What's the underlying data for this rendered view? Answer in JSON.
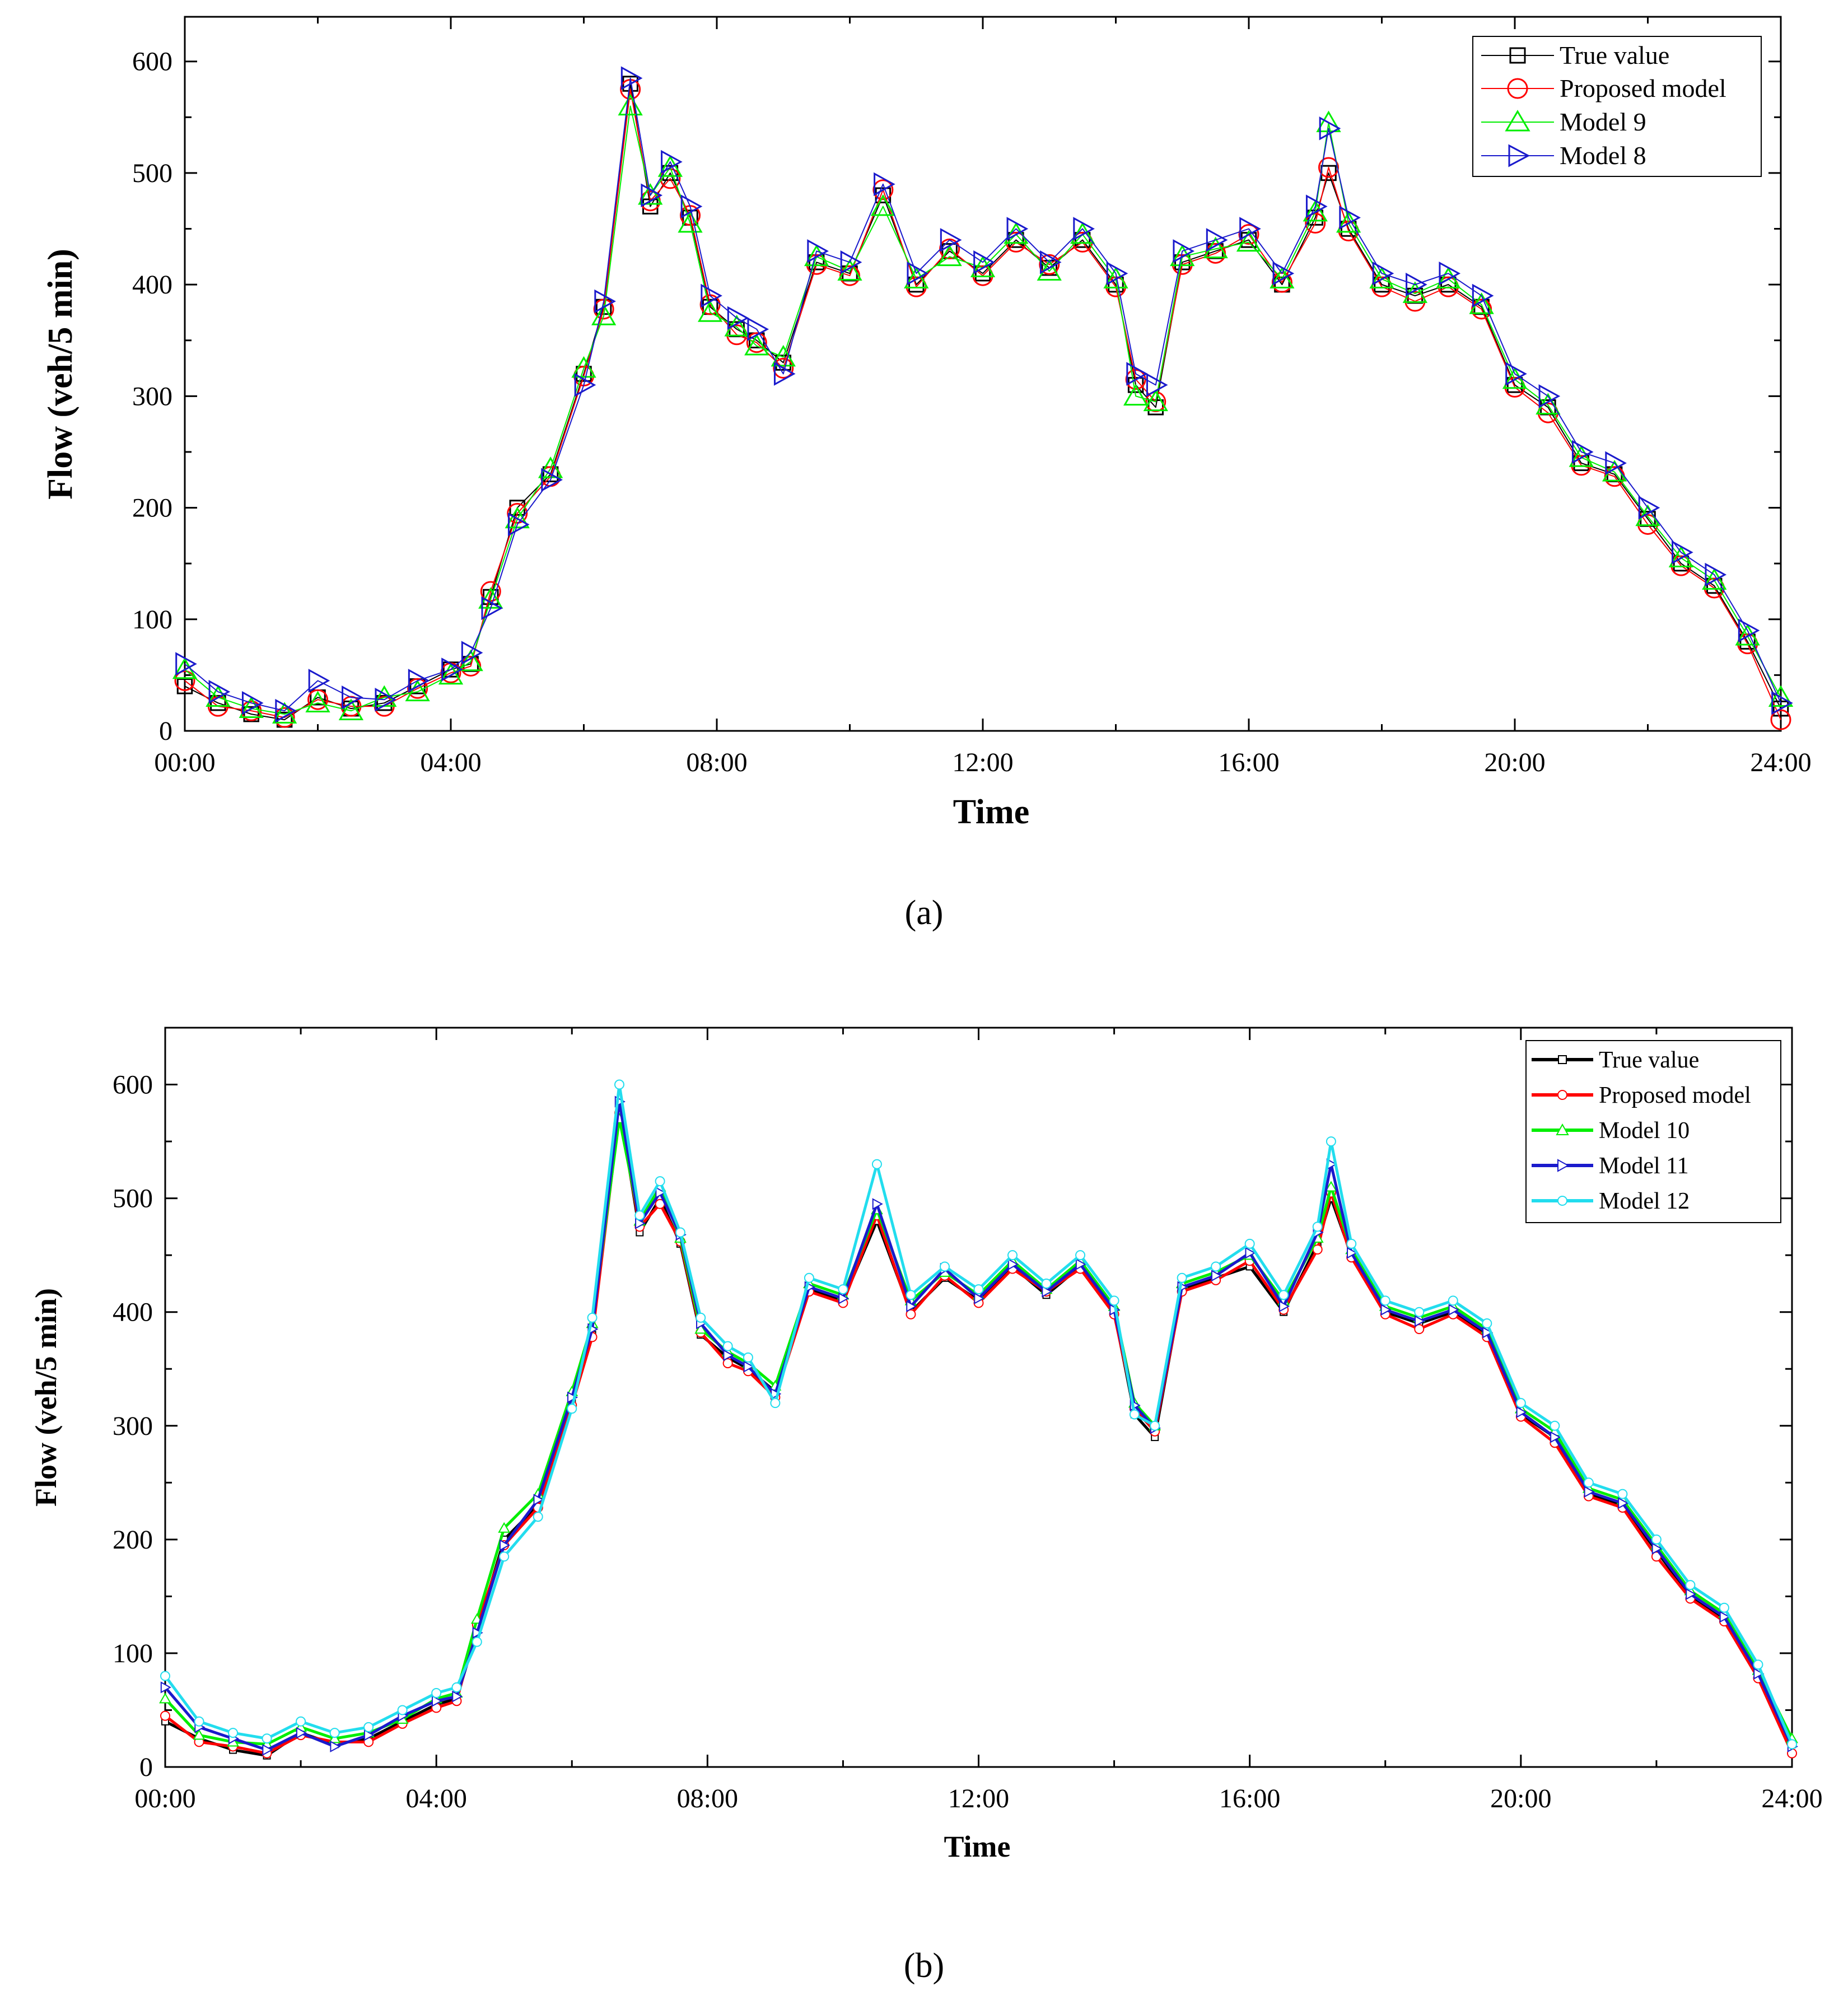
{
  "chart_data": [
    {
      "id": "a",
      "type": "line",
      "caption": "(a)",
      "xlabel": "Time",
      "ylabel": "Flow (veh/5 min)",
      "xlim": [
        0,
        24
      ],
      "ylim": [
        0,
        640
      ],
      "x_ticks": [
        0,
        4,
        8,
        12,
        16,
        20,
        24
      ],
      "x_tick_labels": [
        "00:00",
        "04:00",
        "08:00",
        "12:00",
        "16:00",
        "20:00",
        "24:00"
      ],
      "y_ticks": [
        0,
        100,
        200,
        300,
        400,
        500,
        600
      ],
      "y_tick_labels": [
        "0",
        "100",
        "200",
        "300",
        "400",
        "500",
        "600"
      ],
      "legend_position": "top-right",
      "x_hours": [
        0,
        0.5,
        1,
        1.5,
        2,
        2.5,
        3,
        3.5,
        4,
        4.3,
        4.6,
        5,
        5.5,
        6,
        6.3,
        6.7,
        7,
        7.3,
        7.6,
        7.9,
        8.3,
        8.6,
        9,
        9.5,
        10,
        10.5,
        11,
        11.5,
        12,
        12.5,
        13,
        13.5,
        14,
        14.3,
        14.6,
        15,
        15.5,
        16,
        16.5,
        17,
        17.2,
        17.5,
        18,
        18.5,
        19,
        19.5,
        20,
        20.5,
        21,
        21.5,
        22,
        22.5,
        23,
        23.5,
        24
      ],
      "series": [
        {
          "name": "True value",
          "color": "#000000",
          "marker": "square",
          "values": [
            40,
            25,
            15,
            10,
            30,
            20,
            25,
            40,
            55,
            60,
            120,
            200,
            230,
            320,
            380,
            580,
            470,
            500,
            460,
            380,
            360,
            350,
            330,
            420,
            410,
            480,
            400,
            430,
            410,
            440,
            415,
            440,
            400,
            310,
            290,
            420,
            430,
            440,
            400,
            460,
            500,
            450,
            400,
            390,
            400,
            380,
            310,
            290,
            240,
            230,
            190,
            150,
            130,
            80,
            20
          ]
        },
        {
          "name": "Proposed model",
          "color": "#ff0000",
          "marker": "circle",
          "values": [
            45,
            22,
            18,
            12,
            28,
            22,
            22,
            38,
            52,
            58,
            125,
            195,
            228,
            318,
            378,
            575,
            475,
            495,
            462,
            382,
            355,
            348,
            325,
            418,
            408,
            485,
            398,
            432,
            408,
            438,
            418,
            438,
            398,
            315,
            295,
            418,
            428,
            445,
            402,
            455,
            505,
            448,
            398,
            385,
            398,
            378,
            308,
            285,
            238,
            228,
            185,
            148,
            128,
            78,
            10
          ]
        },
        {
          "name": "Model 9",
          "color": "#00ee00",
          "marker": "triangle-up",
          "values": [
            55,
            30,
            20,
            15,
            25,
            18,
            30,
            35,
            50,
            62,
            118,
            190,
            235,
            325,
            372,
            560,
            480,
            505,
            455,
            375,
            362,
            345,
            335,
            425,
            412,
            470,
            405,
            425,
            415,
            445,
            412,
            445,
            405,
            300,
            295,
            425,
            432,
            438,
            405,
            465,
            545,
            455,
            405,
            392,
            405,
            382,
            315,
            292,
            245,
            232,
            192,
            155,
            135,
            85,
            30
          ]
        },
        {
          "name": "Model 8",
          "color": "#1a1acc",
          "marker": "triangle-right",
          "values": [
            60,
            35,
            25,
            18,
            45,
            30,
            28,
            45,
            55,
            70,
            110,
            185,
            225,
            310,
            385,
            585,
            480,
            510,
            470,
            390,
            370,
            360,
            320,
            430,
            420,
            490,
            410,
            440,
            420,
            450,
            420,
            450,
            410,
            320,
            310,
            430,
            440,
            450,
            410,
            470,
            540,
            460,
            410,
            400,
            410,
            390,
            320,
            300,
            250,
            240,
            200,
            160,
            140,
            90,
            25
          ]
        }
      ]
    },
    {
      "id": "b",
      "type": "line",
      "caption": "(b)",
      "xlabel": "Time",
      "ylabel": "Flow (veh/5 min)",
      "xlim": [
        0,
        24
      ],
      "ylim": [
        0,
        650
      ],
      "x_ticks": [
        0,
        4,
        8,
        12,
        16,
        20,
        24
      ],
      "x_tick_labels": [
        "00:00",
        "04:00",
        "08:00",
        "12:00",
        "16:00",
        "20:00",
        "24:00"
      ],
      "y_ticks": [
        0,
        100,
        200,
        300,
        400,
        500,
        600
      ],
      "y_tick_labels": [
        "0",
        "100",
        "200",
        "300",
        "400",
        "500",
        "600"
      ],
      "legend_position": "top-right",
      "x_hours": [
        0,
        0.5,
        1,
        1.5,
        2,
        2.5,
        3,
        3.5,
        4,
        4.3,
        4.6,
        5,
        5.5,
        6,
        6.3,
        6.7,
        7,
        7.3,
        7.6,
        7.9,
        8.3,
        8.6,
        9,
        9.5,
        10,
        10.5,
        11,
        11.5,
        12,
        12.5,
        13,
        13.5,
        14,
        14.3,
        14.6,
        15,
        15.5,
        16,
        16.5,
        17,
        17.2,
        17.5,
        18,
        18.5,
        19,
        19.5,
        20,
        20.5,
        21,
        21.5,
        22,
        22.5,
        23,
        23.5,
        24
      ],
      "series": [
        {
          "name": "True value",
          "color": "#000000",
          "marker": "square",
          "values": [
            40,
            25,
            15,
            10,
            30,
            20,
            25,
            40,
            55,
            60,
            120,
            200,
            230,
            320,
            380,
            580,
            470,
            500,
            460,
            380,
            360,
            350,
            330,
            420,
            410,
            480,
            400,
            430,
            410,
            440,
            415,
            440,
            400,
            310,
            290,
            420,
            430,
            440,
            400,
            460,
            500,
            450,
            400,
            390,
            400,
            380,
            310,
            290,
            240,
            230,
            190,
            150,
            130,
            80,
            20
          ]
        },
        {
          "name": "Proposed model",
          "color": "#ff0000",
          "marker": "circle",
          "values": [
            45,
            22,
            18,
            12,
            28,
            22,
            22,
            38,
            52,
            58,
            125,
            195,
            228,
            318,
            378,
            575,
            475,
            495,
            462,
            382,
            355,
            348,
            325,
            418,
            408,
            485,
            398,
            432,
            408,
            438,
            418,
            438,
            398,
            315,
            295,
            418,
            428,
            445,
            402,
            455,
            505,
            448,
            398,
            385,
            398,
            378,
            308,
            285,
            238,
            228,
            185,
            148,
            128,
            78,
            12
          ]
        },
        {
          "name": "Model 10",
          "color": "#00ee00",
          "marker": "triangle-up",
          "values": [
            60,
            28,
            22,
            20,
            35,
            25,
            30,
            42,
            60,
            65,
            130,
            210,
            240,
            330,
            390,
            570,
            480,
            510,
            465,
            385,
            365,
            355,
            335,
            425,
            415,
            490,
            410,
            435,
            415,
            445,
            420,
            445,
            405,
            320,
            300,
            425,
            435,
            450,
            410,
            465,
            510,
            455,
            405,
            395,
            405,
            385,
            315,
            295,
            245,
            235,
            195,
            155,
            135,
            85,
            25
          ]
        },
        {
          "name": "Model 11",
          "color": "#1a1acc",
          "marker": "triangle-right",
          "values": [
            70,
            35,
            25,
            15,
            30,
            18,
            28,
            45,
            58,
            62,
            118,
            195,
            235,
            325,
            385,
            585,
            478,
            505,
            468,
            390,
            362,
            352,
            328,
            422,
            412,
            495,
            405,
            438,
            412,
            442,
            418,
            442,
            402,
            318,
            298,
            422,
            432,
            452,
            405,
            470,
            530,
            452,
            402,
            392,
            402,
            382,
            312,
            290,
            242,
            232,
            192,
            152,
            132,
            82,
            18
          ]
        },
        {
          "name": "Model 12",
          "color": "#22ddee",
          "marker": "circle",
          "values": [
            80,
            40,
            30,
            25,
            40,
            30,
            35,
            50,
            65,
            70,
            110,
            185,
            220,
            315,
            395,
            600,
            485,
            515,
            470,
            395,
            370,
            360,
            320,
            430,
            420,
            530,
            415,
            440,
            420,
            450,
            425,
            450,
            410,
            310,
            300,
            430,
            440,
            460,
            415,
            475,
            550,
            460,
            410,
            400,
            410,
            390,
            320,
            300,
            250,
            240,
            200,
            160,
            140,
            90,
            20
          ]
        }
      ]
    }
  ]
}
